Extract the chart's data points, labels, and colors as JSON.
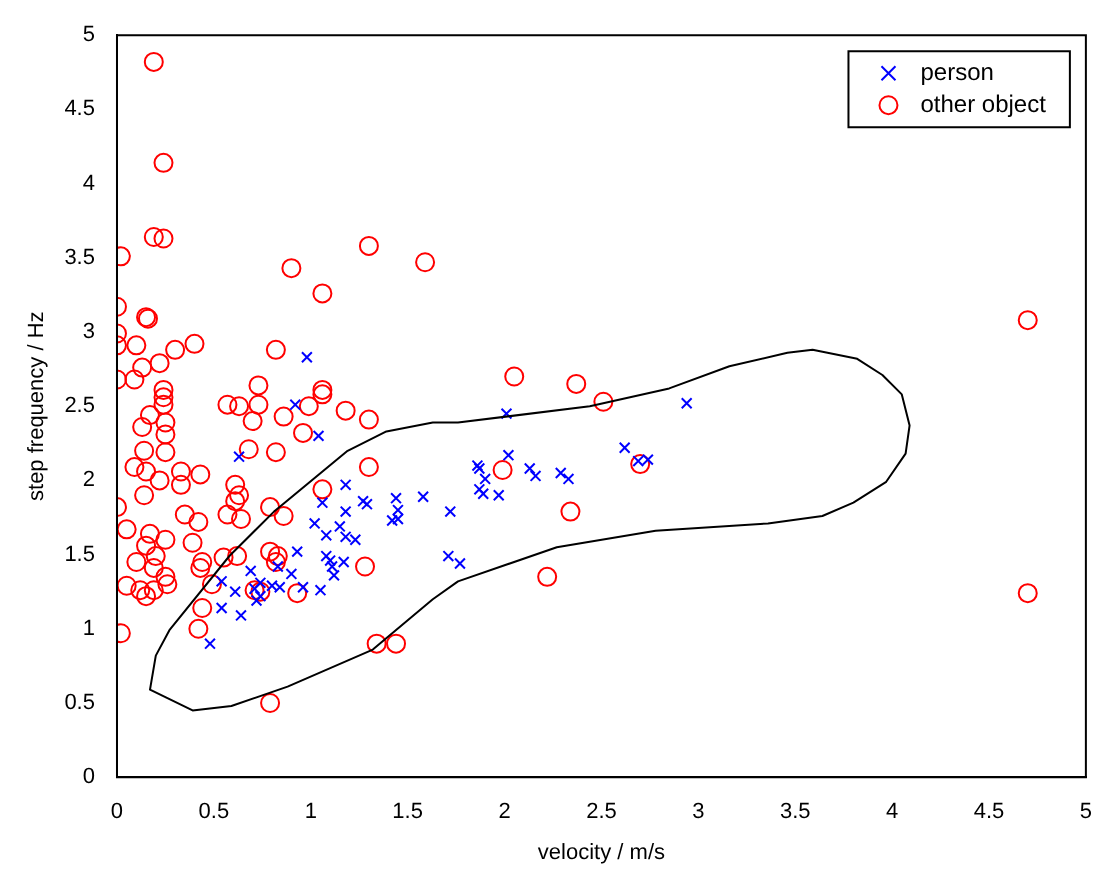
{
  "chart_data": {
    "type": "scatter",
    "xlabel": "velocity / m/s",
    "ylabel": "step frequency / Hz",
    "xlim": [
      0,
      5
    ],
    "ylim": [
      0,
      5
    ],
    "xticks": [
      0,
      0.5,
      1,
      1.5,
      2,
      2.5,
      3,
      3.5,
      4,
      4.5,
      5
    ],
    "yticks": [
      0,
      0.5,
      1,
      1.5,
      2,
      2.5,
      3,
      3.5,
      4,
      4.5,
      5
    ],
    "grid": false,
    "legend": "top right",
    "series": [
      {
        "name": "person",
        "color": "#0000ff",
        "marker": "cross",
        "x": [
          0.98,
          0.92,
          1.04,
          0.63,
          1.18,
          1.06,
          1.27,
          1.29,
          1.44,
          1.58,
          1.42,
          1.45,
          1.18,
          1.15,
          1.02,
          1.08,
          1.18,
          1.23,
          0.93,
          1.08,
          1.1,
          1.17,
          1.11,
          0.69,
          0.74,
          0.83,
          0.9,
          0.8,
          0.84,
          0.96,
          1.05,
          1.12,
          0.54,
          0.61,
          0.54,
          0.64,
          0.72,
          0.74,
          0.71,
          0.48,
          2.01,
          2.94,
          2.02,
          1.86,
          1.87,
          1.9,
          1.87,
          1.89,
          1.97,
          2.13,
          2.16,
          2.29,
          2.33,
          2.62,
          2.74,
          2.69,
          1.72,
          1.71,
          1.77,
          1.45
        ],
        "values": [
          2.83,
          2.51,
          2.3,
          2.16,
          1.97,
          1.85,
          1.86,
          1.84,
          1.88,
          1.89,
          1.73,
          1.74,
          1.79,
          1.69,
          1.71,
          1.63,
          1.62,
          1.6,
          1.52,
          1.49,
          1.46,
          1.45,
          1.42,
          1.39,
          1.31,
          1.42,
          1.37,
          1.29,
          1.28,
          1.28,
          1.26,
          1.36,
          1.32,
          1.25,
          1.14,
          1.09,
          1.19,
          1.22,
          1.27,
          0.9,
          2.45,
          2.52,
          2.17,
          2.1,
          2.08,
          2.01,
          1.94,
          1.91,
          1.9,
          2.08,
          2.03,
          2.05,
          2.01,
          2.22,
          2.14,
          2.13,
          1.79,
          1.49,
          1.44,
          1.8
        ]
      },
      {
        "name": "other object",
        "color": "#ff0000",
        "marker": "circle",
        "x": [
          0.19,
          0.24,
          0.19,
          0.24,
          0.02,
          1.3,
          1.59,
          0.9,
          1.06,
          0.0,
          0.15,
          0.16,
          0.0,
          0.0,
          0.1,
          0.3,
          0.4,
          0.22,
          0.13,
          0.0,
          0.09,
          0.82,
          0.73,
          1.06,
          0.24,
          0.24,
          0.24,
          0.17,
          0.25,
          0.13,
          0.25,
          0.14,
          0.25,
          0.09,
          0.15,
          0.22,
          0.14,
          0.0,
          0.05,
          0.17,
          0.25,
          0.15,
          0.2,
          0.1,
          0.19,
          0.25,
          0.05,
          0.12,
          0.19,
          0.26,
          0.15,
          0.02,
          0.33,
          0.43,
          0.33,
          0.35,
          0.42,
          0.39,
          0.44,
          0.43,
          0.49,
          0.44,
          0.42,
          0.55,
          0.62,
          0.57,
          0.64,
          0.61,
          0.63,
          0.61,
          0.68,
          0.57,
          0.63,
          0.73,
          0.7,
          0.82,
          0.86,
          0.96,
          0.99,
          1.06,
          1.18,
          1.3,
          1.3,
          1.06,
          0.79,
          0.86,
          0.79,
          0.83,
          0.82,
          0.71,
          0.74,
          0.93,
          1.28,
          1.34,
          1.44,
          0.79,
          2.05,
          2.37,
          2.51,
          1.99,
          2.7,
          2.34,
          2.22,
          4.7,
          4.7
        ],
        "values": [
          4.82,
          4.14,
          3.64,
          3.63,
          3.51,
          3.58,
          3.47,
          3.43,
          3.26,
          3.17,
          3.1,
          3.09,
          2.99,
          2.91,
          2.91,
          2.88,
          2.92,
          2.79,
          2.76,
          2.68,
          2.68,
          2.88,
          2.64,
          2.61,
          2.61,
          2.56,
          2.51,
          2.44,
          2.39,
          2.36,
          2.31,
          2.2,
          2.19,
          2.09,
          2.06,
          2.0,
          1.9,
          1.82,
          1.67,
          1.64,
          1.6,
          1.56,
          1.49,
          1.45,
          1.41,
          1.35,
          1.29,
          1.26,
          1.26,
          1.3,
          1.22,
          0.97,
          2.06,
          2.04,
          1.97,
          1.77,
          1.72,
          1.58,
          1.45,
          1.41,
          1.3,
          1.14,
          1.0,
          1.48,
          1.49,
          1.77,
          1.74,
          1.86,
          1.9,
          1.97,
          2.21,
          2.51,
          2.5,
          2.51,
          2.4,
          2.19,
          2.43,
          2.32,
          2.5,
          2.58,
          2.47,
          2.41,
          2.09,
          1.94,
          1.82,
          1.76,
          1.52,
          1.49,
          1.45,
          1.26,
          1.25,
          1.24,
          1.42,
          0.9,
          0.9,
          0.5,
          2.7,
          2.65,
          2.53,
          2.07,
          2.11,
          1.79,
          1.35,
          3.08,
          1.24
        ]
      }
    ]
  }
}
